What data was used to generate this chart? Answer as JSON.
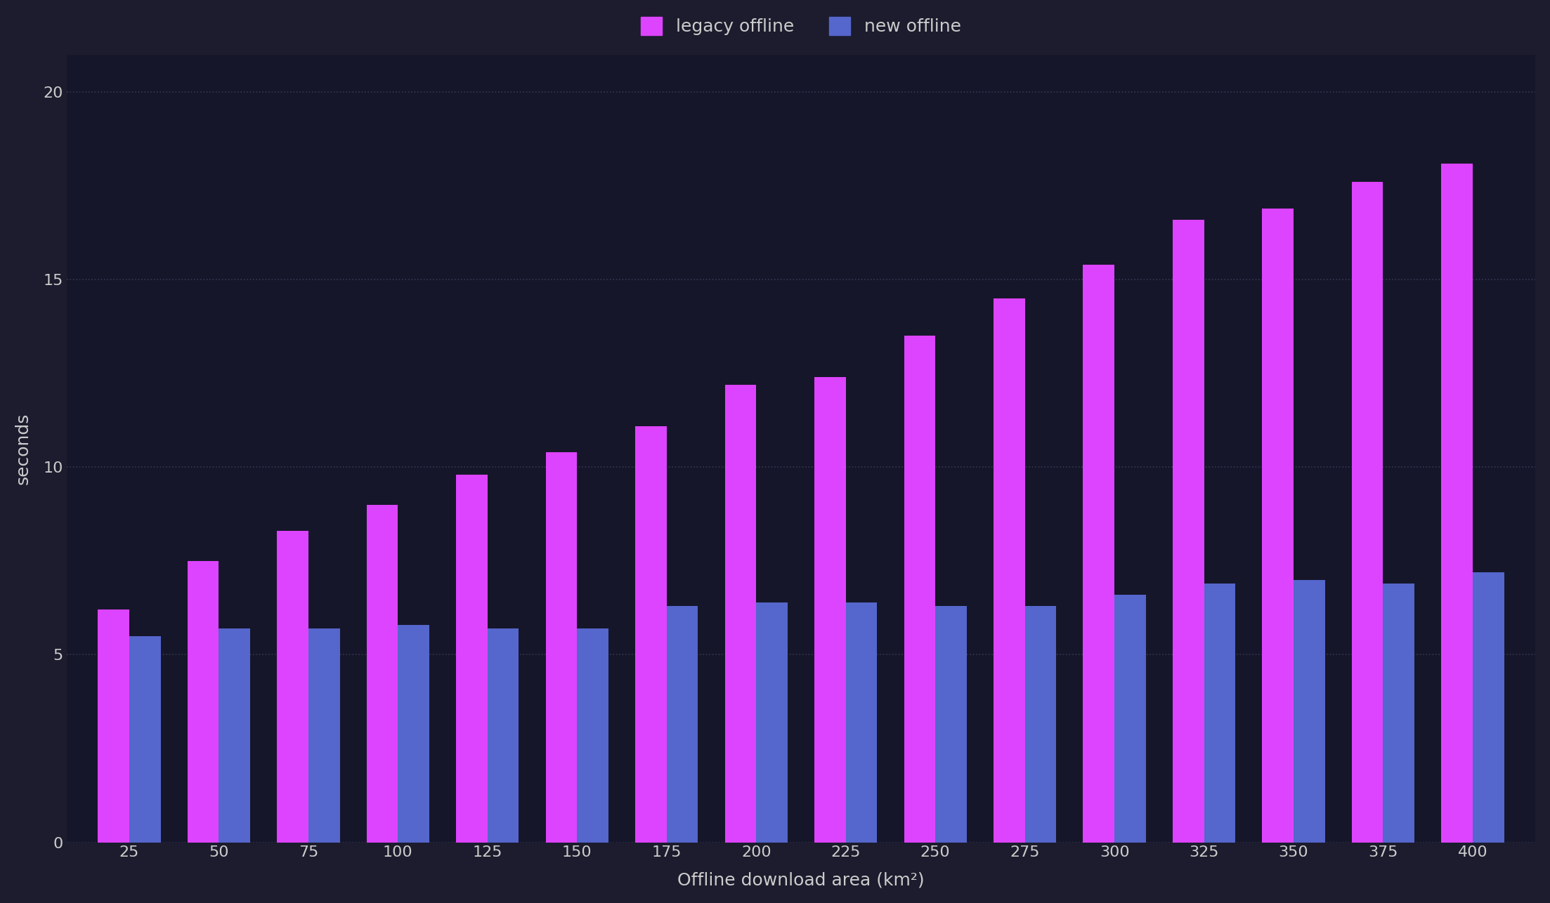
{
  "categories": [
    25,
    50,
    75,
    100,
    125,
    150,
    175,
    200,
    225,
    250,
    275,
    300,
    325,
    350,
    375,
    400
  ],
  "legacy_values": [
    6.2,
    7.5,
    8.3,
    9.0,
    9.8,
    10.4,
    11.1,
    12.2,
    12.4,
    13.5,
    14.5,
    15.4,
    16.6,
    16.9,
    17.6,
    18.1
  ],
  "new_values": [
    5.5,
    5.7,
    5.7,
    5.8,
    5.7,
    5.7,
    6.3,
    6.4,
    6.4,
    6.3,
    6.3,
    6.6,
    6.9,
    7.0,
    6.9,
    7.2
  ],
  "legacy_color": "#dd44ff",
  "new_color": "#5566cc",
  "background_color": "#1a1a2e",
  "axes_background": "#16162a",
  "grid_color": "#444466",
  "text_color": "#cccccc",
  "ylabel": "seconds",
  "xlabel": "Offline download area (km²)",
  "legend_labels": [
    "legacy offline",
    "new offline"
  ],
  "ylim": [
    0,
    21
  ],
  "yticks": [
    0,
    5,
    10,
    15,
    20
  ],
  "title_fontsize": 20,
  "label_fontsize": 18,
  "tick_fontsize": 16,
  "legend_fontsize": 18,
  "bar_width": 0.35,
  "figure_bg": "#1c1c2e"
}
